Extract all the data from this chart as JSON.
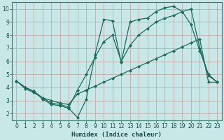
{
  "xlabel": "Humidex (Indice chaleur)",
  "bg_color": "#c8e8e8",
  "line_color": "#1a6b5a",
  "xlim": [
    -0.5,
    23.5
  ],
  "ylim": [
    1.5,
    10.5
  ],
  "xticks": [
    0,
    1,
    2,
    3,
    4,
    5,
    6,
    7,
    8,
    9,
    10,
    11,
    12,
    13,
    14,
    15,
    16,
    17,
    18,
    19,
    20,
    21,
    22,
    23
  ],
  "yticks": [
    2,
    3,
    4,
    5,
    6,
    7,
    8,
    9,
    10
  ],
  "line1_x": [
    0,
    1,
    2,
    3,
    4,
    5,
    6,
    7,
    8,
    9,
    10,
    11,
    12,
    13,
    14,
    15,
    16,
    17,
    18,
    19,
    20,
    21,
    22,
    23
  ],
  "line1_y": [
    4.5,
    4.0,
    3.7,
    3.1,
    2.7,
    2.6,
    2.4,
    1.7,
    3.1,
    6.5,
    9.2,
    9.1,
    5.9,
    9.0,
    9.2,
    9.3,
    9.8,
    10.1,
    10.2,
    9.8,
    8.8,
    6.8,
    5.0,
    4.4
  ],
  "line2_x": [
    0,
    1,
    2,
    3,
    4,
    5,
    6,
    7,
    8,
    9,
    10,
    11,
    12,
    13,
    14,
    15,
    16,
    17,
    18,
    19,
    20,
    21,
    22,
    23
  ],
  "line2_y": [
    4.5,
    3.9,
    3.6,
    3.2,
    3.0,
    2.8,
    2.7,
    3.5,
    3.8,
    4.1,
    4.4,
    4.7,
    5.0,
    5.3,
    5.6,
    5.9,
    6.2,
    6.5,
    6.8,
    7.1,
    7.4,
    7.7,
    4.4,
    4.4
  ],
  "line3_x": [
    0,
    1,
    2,
    3,
    4,
    5,
    6,
    7,
    8,
    9,
    10,
    11,
    12,
    13,
    14,
    15,
    16,
    17,
    18,
    19,
    20,
    21,
    22,
    23
  ],
  "line3_y": [
    4.5,
    4.0,
    3.7,
    3.2,
    2.8,
    2.7,
    2.5,
    3.8,
    5.0,
    6.3,
    7.5,
    8.0,
    6.0,
    7.2,
    8.0,
    8.5,
    9.0,
    9.3,
    9.5,
    9.8,
    10.0,
    7.0,
    4.9,
    4.4
  ],
  "marker_size": 2.5,
  "linewidth": 0.9
}
